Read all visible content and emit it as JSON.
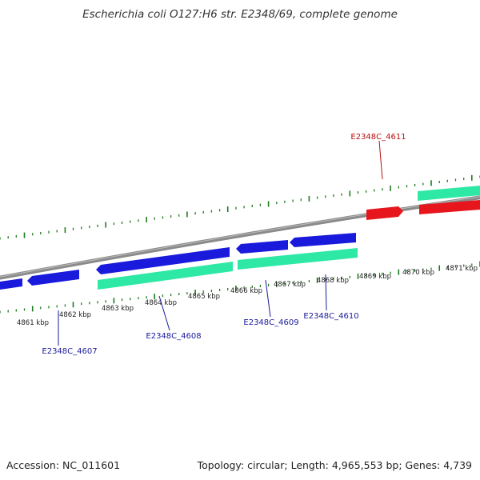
{
  "title": "Escherichia coli O127:H6 str. E2348/69, complete genome",
  "footer": {
    "accession": "Accession: NC_011601",
    "summary": "Topology: circular; Length: 4,965,553 bp; Genes: 4,739"
  },
  "colors": {
    "forward_cds": "#2ee8a6",
    "reverse_cds": "#1a1adc",
    "rna": "#e6161c",
    "ticks": "#1f7a1f",
    "backbone": "#8a8a8a",
    "label_blue": "#1a1a9a",
    "label_red": "#b81010"
  },
  "tick_labels": [
    "4861 kbp",
    "4862 kbp",
    "4863 kbp",
    "4864 kbp",
    "4865 kbp",
    "4866 kbp",
    "4867 kbp",
    "4868 kbp",
    "4869 kbp",
    "4870 kbp",
    "4871 kbp"
  ],
  "genes": [
    {
      "id": "E2348C_4607",
      "strand": "reverse",
      "type": "CDS"
    },
    {
      "id": "E2348C_4608",
      "strand": "reverse",
      "type": "CDS"
    },
    {
      "id": "E2348C_4609",
      "strand": "reverse",
      "type": "CDS"
    },
    {
      "id": "E2348C_4610",
      "strand": "forward",
      "type": "CDS"
    },
    {
      "id": "E2348C_4611",
      "strand": "forward",
      "type": "RNA"
    }
  ]
}
